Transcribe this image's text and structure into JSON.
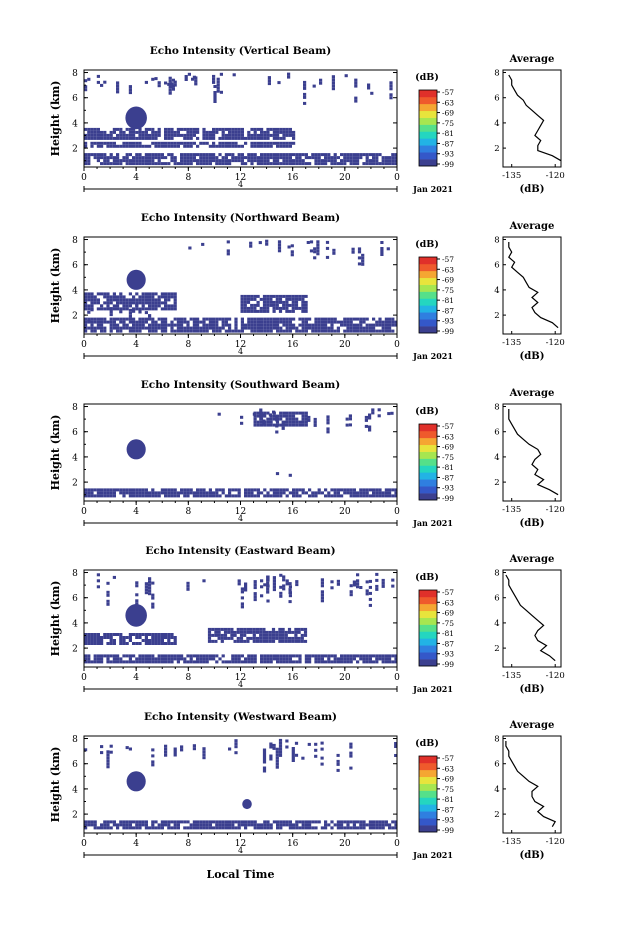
{
  "figure": {
    "x_bottom_label": "Local Time",
    "date_label": "Jan 2021"
  },
  "colorbar": {
    "unit": "(dB)",
    "ticks": [
      "-57",
      "-63",
      "-69",
      "-75",
      "-81",
      "-87",
      "-93",
      "-99"
    ],
    "colors": [
      "#3b3f8f",
      "#3458c9",
      "#2f7fe0",
      "#22b3e5",
      "#24d6c0",
      "#55e08a",
      "#a6e650",
      "#e8e43c",
      "#f5a632",
      "#ef5a2c",
      "#e0302a"
    ],
    "mark_color": "#3b3f8f"
  },
  "chart_data": [
    {
      "type": "heatmap",
      "title": "Echo Intensity (Vertical Beam)",
      "ylabel": "Height (km)",
      "y_ticks": [
        "2",
        "4",
        "6",
        "8"
      ],
      "ylim": [
        0.5,
        8.2
      ],
      "x_ticks": [
        "0",
        "4",
        "8",
        "12",
        "16",
        "20",
        "0"
      ],
      "x_sub_label": "4",
      "xlim": [
        0,
        24
      ],
      "blobs": [
        [
          4,
          4.4,
          0.9
        ]
      ],
      "bands": [
        [
          0,
          16,
          2.8,
          3.6
        ],
        [
          0,
          24,
          0.8,
          1.6
        ],
        [
          0,
          16,
          2.2,
          2.5
        ]
      ],
      "scatter": [
        [
          6,
          24,
          6.0,
          8.0
        ],
        [
          0,
          10,
          7.0,
          8.0
        ]
      ],
      "average": {
        "title": "Average",
        "xlabel": "(dB)",
        "x_ticks": [
          "-135",
          "-120"
        ],
        "xlim": [
          -138,
          -118
        ],
        "y_ticks": [
          "2",
          "4",
          "6",
          "8"
        ],
        "ylim": [
          0.5,
          8.2
        ],
        "heights": [
          1.0,
          1.4,
          1.8,
          2.2,
          2.6,
          3.0,
          3.4,
          3.8,
          4.2,
          4.6,
          5.0,
          5.4,
          5.8,
          6.2,
          6.6,
          7.0,
          7.4,
          7.8
        ],
        "values": [
          -118,
          -121,
          -126,
          -126,
          -125,
          -127,
          -126,
          -125,
          -124,
          -126,
          -128,
          -130,
          -131,
          -133,
          -134,
          -135,
          -135,
          -136
        ]
      }
    },
    {
      "type": "heatmap",
      "title": "Echo Intensity (Northward Beam)",
      "ylabel": "Height (km)",
      "y_ticks": [
        "2",
        "4",
        "6",
        "8"
      ],
      "ylim": [
        0.5,
        8.2
      ],
      "x_ticks": [
        "0",
        "4",
        "8",
        "12",
        "16",
        "20",
        "0"
      ],
      "x_sub_label": "4",
      "xlim": [
        0,
        24
      ],
      "blobs": [
        [
          4,
          4.8,
          0.8
        ]
      ],
      "bands": [
        [
          0,
          24,
          0.8,
          1.8
        ],
        [
          0,
          7,
          2.6,
          3.8
        ],
        [
          12,
          17,
          2.4,
          3.6
        ]
      ],
      "scatter": [
        [
          8,
          24,
          6.5,
          8.0
        ],
        [
          0,
          5,
          2.0,
          3.0
        ]
      ],
      "average": {
        "title": "Average",
        "xlabel": "(dB)",
        "x_ticks": [
          "-135",
          "-120"
        ],
        "xlim": [
          -138,
          -118
        ],
        "y_ticks": [
          "2",
          "4",
          "6",
          "8"
        ],
        "ylim": [
          0.5,
          8.2
        ],
        "heights": [
          1.0,
          1.4,
          1.8,
          2.2,
          2.6,
          3.0,
          3.4,
          3.8,
          4.2,
          4.6,
          5.0,
          5.4,
          5.8,
          6.2,
          6.6,
          7.0,
          7.4,
          7.8
        ],
        "values": [
          -119,
          -121,
          -125,
          -127,
          -128,
          -126,
          -128,
          -126,
          -129,
          -130,
          -131,
          -133,
          -135,
          -134,
          -136,
          -135,
          -136,
          -136
        ]
      }
    },
    {
      "type": "heatmap",
      "title": "Echo Intensity (Southward Beam)",
      "ylabel": "Height (km)",
      "y_ticks": [
        "2",
        "4",
        "6",
        "8"
      ],
      "ylim": [
        0.5,
        8.2
      ],
      "x_ticks": [
        "0",
        "4",
        "8",
        "12",
        "16",
        "20",
        "0"
      ],
      "x_sub_label": "4",
      "xlim": [
        0,
        24
      ],
      "blobs": [
        [
          4,
          4.6,
          0.8
        ]
      ],
      "bands": [
        [
          0,
          24,
          0.8,
          1.5
        ],
        [
          13,
          17,
          6.5,
          7.6
        ]
      ],
      "scatter": [
        [
          10,
          24,
          6.0,
          8.0
        ],
        [
          13,
          16,
          2.6,
          3.4
        ]
      ],
      "average": {
        "title": "Average",
        "xlabel": "(dB)",
        "x_ticks": [
          "-135",
          "-120"
        ],
        "xlim": [
          -138,
          -118
        ],
        "y_ticks": [
          "2",
          "4",
          "6",
          "8"
        ],
        "ylim": [
          0.5,
          8.2
        ],
        "heights": [
          1.0,
          1.4,
          1.8,
          2.2,
          2.6,
          3.0,
          3.4,
          3.8,
          4.2,
          4.6,
          5.0,
          5.4,
          5.8,
          6.2,
          6.6,
          7.0,
          7.4,
          7.8
        ],
        "values": [
          -119,
          -122,
          -126,
          -124,
          -127,
          -126,
          -128,
          -127,
          -125,
          -126,
          -129,
          -131,
          -133,
          -134,
          -135,
          -136,
          -136,
          -136
        ]
      }
    },
    {
      "type": "heatmap",
      "title": "Echo Intensity (Eastward Beam)",
      "ylabel": "Height (km)",
      "y_ticks": [
        "2",
        "4",
        "6",
        "8"
      ],
      "ylim": [
        0.5,
        8.2
      ],
      "x_ticks": [
        "0",
        "4",
        "8",
        "12",
        "16",
        "20",
        "0"
      ],
      "x_sub_label": "4",
      "xlim": [
        0,
        24
      ],
      "blobs": [
        [
          4,
          4.6,
          0.9
        ]
      ],
      "bands": [
        [
          0,
          24,
          0.8,
          1.5
        ],
        [
          9.5,
          17,
          2.6,
          3.6
        ],
        [
          0,
          7,
          2.4,
          3.2
        ]
      ],
      "scatter": [
        [
          0,
          24,
          6.0,
          8.0
        ],
        [
          12,
          17,
          4.5,
          8.0
        ]
      ],
      "average": {
        "title": "Average",
        "xlabel": "(dB)",
        "x_ticks": [
          "-135",
          "-120"
        ],
        "xlim": [
          -138,
          -118
        ],
        "y_ticks": [
          "2",
          "4",
          "6",
          "8"
        ],
        "ylim": [
          0.5,
          8.2
        ],
        "heights": [
          1.0,
          1.4,
          1.8,
          2.2,
          2.6,
          3.0,
          3.4,
          3.8,
          4.2,
          4.6,
          5.0,
          5.4,
          5.8,
          6.2,
          6.6,
          7.0,
          7.4,
          7.8
        ],
        "values": [
          -120,
          -122,
          -125,
          -123,
          -126,
          -127,
          -126,
          -124,
          -126,
          -128,
          -130,
          -132,
          -133,
          -134,
          -135,
          -136,
          -136,
          -137
        ]
      }
    },
    {
      "type": "heatmap",
      "title": "Echo Intensity (Westward Beam)",
      "ylabel": "Height (km)",
      "y_ticks": [
        "2",
        "4",
        "6",
        "8"
      ],
      "ylim": [
        0.5,
        8.2
      ],
      "x_ticks": [
        "0",
        "4",
        "8",
        "12",
        "16",
        "20",
        "0"
      ],
      "x_sub_label": "4",
      "xlim": [
        0,
        24
      ],
      "blobs": [
        [
          4,
          4.6,
          0.8
        ],
        [
          12.5,
          2.8,
          0.4
        ]
      ],
      "bands": [
        [
          0,
          24,
          0.8,
          1.5
        ]
      ],
      "scatter": [
        [
          12,
          24,
          5.5,
          8.0
        ],
        [
          0,
          12,
          6.5,
          8.0
        ]
      ],
      "average": {
        "title": "Average",
        "xlabel": "(dB)",
        "x_ticks": [
          "-135",
          "-120"
        ],
        "xlim": [
          -138,
          -118
        ],
        "y_ticks": [
          "2",
          "4",
          "6",
          "8"
        ],
        "ylim": [
          0.5,
          8.2
        ],
        "heights": [
          1.0,
          1.4,
          1.8,
          2.2,
          2.6,
          3.0,
          3.4,
          3.8,
          4.2,
          4.6,
          5.0,
          5.4,
          5.8,
          6.2,
          6.6,
          7.0,
          7.4,
          7.8
        ],
        "values": [
          -121,
          -120,
          -124,
          -126,
          -124,
          -127,
          -128,
          -128,
          -126,
          -129,
          -131,
          -133,
          -134,
          -135,
          -136,
          -136,
          -137,
          -137
        ]
      }
    }
  ]
}
